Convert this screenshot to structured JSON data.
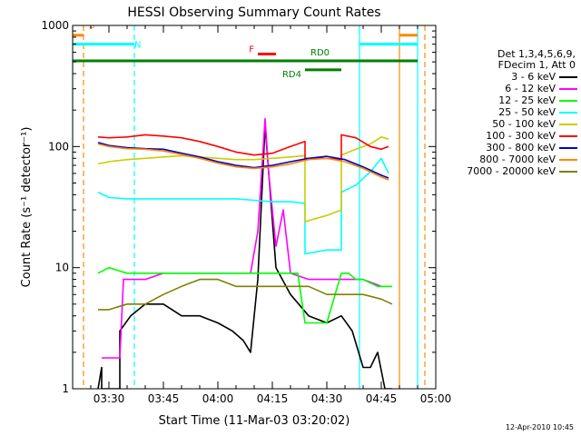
{
  "chart_data": {
    "type": "line",
    "title": "HESSI Observing Summary Count Rates",
    "xlabel": "Start Time (11-Mar-03 03:20:02)",
    "ylabel": "Count Rate (s⁻¹ detector⁻¹)",
    "y_scale": "log",
    "ylim": [
      1,
      1000
    ],
    "xlim": [
      "03:20",
      "05:00"
    ],
    "x_ticks": [
      "03:30",
      "03:45",
      "04:00",
      "04:15",
      "04:30",
      "04:45",
      "05:00"
    ],
    "y_ticks": [
      "1",
      "10",
      "100",
      "1000"
    ],
    "legend_header": [
      "Det 1,3,4,5,6,9,",
      "FDecim 1, Att 0"
    ],
    "series": [
      {
        "name": "3 - 6 keV",
        "color": "#000000",
        "x": [
          "03:27",
          "03:28",
          "03:28",
          "03:33",
          "03:33",
          "03:36",
          "03:40",
          "03:45",
          "03:50",
          "03:55",
          "04:00",
          "04:04",
          "04:07",
          "04:09",
          "04:11",
          "04:13",
          "04:16",
          "04:20",
          "04:25",
          "04:30",
          "04:34",
          "04:37",
          "04:40",
          "04:42",
          "04:44",
          "04:46",
          "04:48"
        ],
        "y": [
          1,
          1.5,
          1,
          1,
          3,
          4,
          5,
          5,
          4,
          4,
          3.5,
          3,
          2.5,
          2,
          8,
          150,
          10,
          6,
          4,
          3.5,
          4,
          3,
          1.5,
          1.5,
          2,
          1,
          1
        ]
      },
      {
        "name": "6 - 12 keV",
        "color": "#ff00ff",
        "x": [
          "03:28",
          "03:33",
          "03:34",
          "03:40",
          "03:45",
          "03:50",
          "03:55",
          "04:00",
          "04:05",
          "04:09",
          "04:11",
          "04:13",
          "04:14",
          "04:16",
          "04:18",
          "04:20",
          "04:25",
          "04:30",
          "04:35",
          "04:40",
          "04:45",
          "04:48"
        ],
        "y": [
          1.8,
          1.8,
          8,
          8,
          9,
          9,
          9,
          9,
          9,
          9,
          20,
          170,
          60,
          15,
          30,
          9,
          8,
          8,
          8,
          8,
          7,
          7
        ]
      },
      {
        "name": "12 - 25 keV",
        "color": "#00ff00",
        "x": [
          "03:27",
          "03:30",
          "03:35",
          "03:40",
          "03:45",
          "03:50",
          "03:55",
          "04:00",
          "04:05",
          "04:10",
          "04:14",
          "04:18",
          "04:22",
          "04:24",
          "04:26",
          "04:30",
          "04:34",
          "04:36",
          "04:38",
          "04:40",
          "04:44",
          "04:48"
        ],
        "y": [
          9,
          10,
          9,
          9,
          9,
          9,
          9,
          9,
          9,
          9,
          9,
          9,
          9,
          3.5,
          3.5,
          3.5,
          9,
          9,
          8,
          8,
          7,
          7
        ]
      },
      {
        "name": "25 - 50 keV",
        "color": "#00ffff",
        "x": [
          "03:27",
          "03:30",
          "03:35",
          "03:40",
          "03:45",
          "03:50",
          "03:55",
          "04:00",
          "04:05",
          "04:10",
          "04:15",
          "04:20",
          "04:24",
          "04:24",
          "04:30",
          "04:34",
          "04:34",
          "04:38",
          "04:42",
          "04:45",
          "04:47"
        ],
        "y": [
          42,
          38,
          37,
          37,
          37,
          37,
          37,
          37,
          37,
          36,
          35,
          35,
          34,
          13,
          14,
          14,
          42,
          48,
          62,
          80,
          60
        ]
      },
      {
        "name": "50 - 100 keV",
        "color": "#cccc00",
        "x": [
          "03:27",
          "03:30",
          "03:35",
          "03:40",
          "03:45",
          "03:50",
          "03:55",
          "04:00",
          "04:05",
          "04:10",
          "04:15",
          "04:20",
          "04:24",
          "04:24",
          "04:30",
          "04:34",
          "04:34",
          "04:38",
          "04:42",
          "04:45",
          "04:47"
        ],
        "y": [
          72,
          75,
          78,
          80,
          82,
          84,
          82,
          80,
          78,
          78,
          80,
          82,
          84,
          24,
          27,
          30,
          85,
          95,
          105,
          120,
          115
        ]
      },
      {
        "name": "100 - 300 keV",
        "color": "#ff0000",
        "x": [
          "03:27",
          "03:30",
          "03:35",
          "03:40",
          "03:45",
          "03:50",
          "03:55",
          "04:00",
          "04:05",
          "04:10",
          "04:15",
          "04:20",
          "04:24",
          "04:24",
          "04:30",
          "04:34",
          "04:34",
          "04:38",
          "04:42",
          "04:45",
          "04:47"
        ],
        "y": [
          120,
          118,
          120,
          125,
          122,
          118,
          110,
          100,
          90,
          85,
          88,
          100,
          110,
          80,
          80,
          78,
          125,
          118,
          100,
          95,
          100
        ]
      },
      {
        "name": "300 - 800 keV",
        "color": "#0000cc",
        "x": [
          "03:27",
          "03:30",
          "03:35",
          "03:40",
          "03:45",
          "03:50",
          "03:55",
          "04:00",
          "04:05",
          "04:10",
          "04:15",
          "04:20",
          "04:25",
          "04:30",
          "04:35",
          "04:40",
          "04:45",
          "04:47"
        ],
        "y": [
          108,
          102,
          98,
          96,
          95,
          88,
          82,
          75,
          70,
          67,
          70,
          75,
          80,
          83,
          78,
          68,
          58,
          55
        ]
      },
      {
        "name": "800 - 7000 keV",
        "color": "#ff8800",
        "x": [
          "03:27",
          "03:30",
          "03:35",
          "03:40",
          "03:45",
          "03:50",
          "03:55",
          "04:00",
          "04:05",
          "04:10",
          "04:15",
          "04:20",
          "04:25",
          "04:30",
          "04:35",
          "04:40",
          "04:45",
          "04:47"
        ],
        "y": [
          105,
          100,
          96,
          95,
          92,
          86,
          80,
          73,
          68,
          66,
          68,
          72,
          78,
          80,
          75,
          66,
          56,
          53
        ]
      },
      {
        "name": "7000 - 20000 keV",
        "color": "#808000",
        "x": [
          "03:27",
          "03:30",
          "03:35",
          "03:40",
          "03:45",
          "03:50",
          "03:55",
          "04:00",
          "04:05",
          "04:10",
          "04:15",
          "04:20",
          "04:25",
          "04:30",
          "04:35",
          "04:40",
          "04:45",
          "04:48"
        ],
        "y": [
          4.5,
          4.5,
          5,
          5,
          6,
          7,
          8,
          8,
          7,
          7,
          7,
          7,
          7,
          6,
          6,
          6,
          5.5,
          5
        ]
      }
    ],
    "flags": [
      {
        "label": "S",
        "color": "#ff8800",
        "x_start": "03:20",
        "x_end": "03:23",
        "y": 830
      },
      {
        "label": "S",
        "color": "#ff8800",
        "x_start": "04:50",
        "x_end": "04:55",
        "y": 830
      },
      {
        "label": "N",
        "color": "#00ffff",
        "x_start": "03:20",
        "x_end": "03:37",
        "y": 700
      },
      {
        "label": "N",
        "color": "#00ffff",
        "x_start": "04:39",
        "x_end": "04:55",
        "y": 700
      },
      {
        "label": "F",
        "color": "#ff0000",
        "x_start": "04:11",
        "x_end": "04:16",
        "y": 580
      },
      {
        "label": "RD0",
        "color": "#008000",
        "x_start": "03:20",
        "x_end": "04:55",
        "y": 510
      },
      {
        "label": "RD4",
        "color": "#008000",
        "x_start": "04:24",
        "x_end": "04:34",
        "y": 430
      }
    ],
    "vertical_lines": [
      {
        "x": "03:23",
        "color": "#ff8800",
        "style": "dashed"
      },
      {
        "x": "03:37",
        "color": "#00ffff",
        "style": "dashed"
      },
      {
        "x": "04:39",
        "color": "#00ffff",
        "style": "solid"
      },
      {
        "x": "04:50",
        "color": "#ff8800",
        "style": "solid"
      },
      {
        "x": "04:55",
        "color": "#00ffff",
        "style": "solid"
      },
      {
        "x": "04:57",
        "color": "#ff8800",
        "style": "dashed"
      },
      {
        "x": "03:20",
        "color": "#00ffff",
        "style": "solid"
      }
    ]
  },
  "timestamp": "12-Apr-2010 10:45"
}
